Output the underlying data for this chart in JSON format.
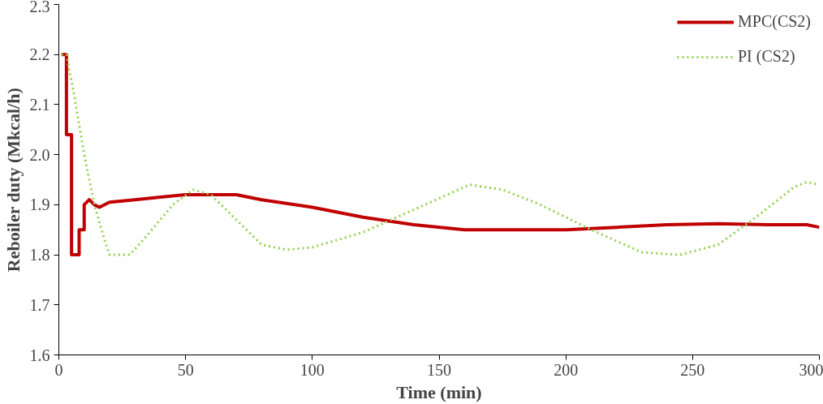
{
  "chart_data": {
    "type": "line",
    "xlabel": "Time (min)",
    "ylabel": "Reboiler duty (Mkcal/h)",
    "xlim": [
      0,
      300
    ],
    "ylim": [
      1.6,
      2.3
    ],
    "xticks": [
      0,
      50,
      100,
      150,
      200,
      250,
      300
    ],
    "yticks": [
      {
        "value": 1.6,
        "label": "1.6"
      },
      {
        "value": 1.7,
        "label": "1.7"
      },
      {
        "value": 1.8,
        "label": "1.8"
      },
      {
        "value": 1.9,
        "label": "1.9"
      },
      {
        "value": 2.0,
        "label": "2.0"
      },
      {
        "value": 2.1,
        "label": "2.1"
      },
      {
        "value": 2.2,
        "label": "2.2"
      },
      {
        "value": 2.3,
        "label": "2.3"
      }
    ],
    "grid": false,
    "legend": "top right",
    "series": [
      {
        "name": "MPC(CS2)",
        "color": "#c00000",
        "line_style": "solid",
        "x": [
          1,
          3,
          3,
          5,
          5,
          8,
          8,
          10,
          10,
          12,
          14,
          16,
          20,
          30,
          40,
          50,
          60,
          70,
          80,
          100,
          120,
          140,
          160,
          180,
          200,
          220,
          240,
          260,
          280,
          295,
          300
        ],
        "values": [
          2.2,
          2.2,
          2.04,
          2.04,
          1.8,
          1.8,
          1.85,
          1.85,
          1.9,
          1.91,
          1.9,
          1.895,
          1.905,
          1.91,
          1.915,
          1.92,
          1.92,
          1.92,
          1.91,
          1.895,
          1.875,
          1.86,
          1.85,
          1.85,
          1.85,
          1.855,
          1.86,
          1.862,
          1.86,
          1.86,
          1.855
        ]
      },
      {
        "name": "PI (CS2)",
        "color": "#92d050",
        "line_style": "dotted",
        "x": [
          1,
          3,
          6,
          10,
          14,
          18,
          20,
          25,
          28,
          35,
          45,
          53,
          60,
          70,
          80,
          90,
          100,
          120,
          140,
          162,
          175,
          190,
          210,
          230,
          245,
          260,
          275,
          290,
          295,
          300
        ],
        "values": [
          2.2,
          2.2,
          2.12,
          2.0,
          1.9,
          1.83,
          1.8,
          1.8,
          1.8,
          1.84,
          1.9,
          1.93,
          1.92,
          1.87,
          1.82,
          1.81,
          1.815,
          1.845,
          1.89,
          1.94,
          1.93,
          1.9,
          1.85,
          1.805,
          1.8,
          1.82,
          1.875,
          1.935,
          1.945,
          1.94
        ]
      }
    ]
  }
}
